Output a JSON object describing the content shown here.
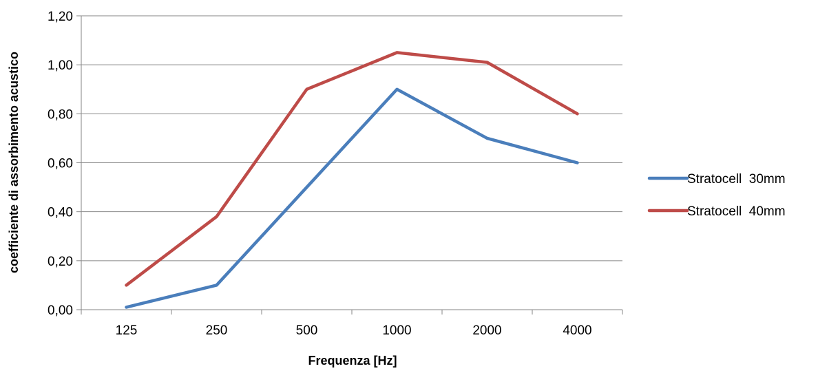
{
  "chart_data": {
    "type": "line",
    "title": "",
    "xlabel": "Frequenza [Hz]",
    "ylabel": "coefficiente di assorbimento acustico",
    "categories": [
      "125",
      "250",
      "500",
      "1000",
      "2000",
      "4000"
    ],
    "series": [
      {
        "name": "Stratocell  30mm",
        "color": "#4a7ebb",
        "values": [
          0.01,
          0.1,
          0.5,
          0.9,
          0.7,
          0.6
        ]
      },
      {
        "name": "Stratocell  40mm",
        "color": "#be4b48",
        "values": [
          0.1,
          0.38,
          0.9,
          1.05,
          1.01,
          0.8
        ]
      }
    ],
    "ylim": [
      0,
      1.2
    ],
    "y_ticks": [
      0,
      0.2,
      0.4,
      0.6,
      0.8,
      1.0,
      1.2
    ],
    "y_tick_labels": [
      "0,00",
      "0,20",
      "0,40",
      "0,60",
      "0,80",
      "1,00",
      "1,20"
    ],
    "grid": true,
    "legend_position": "right",
    "gridline_color": "#868686",
    "axis_color": "#868686"
  }
}
